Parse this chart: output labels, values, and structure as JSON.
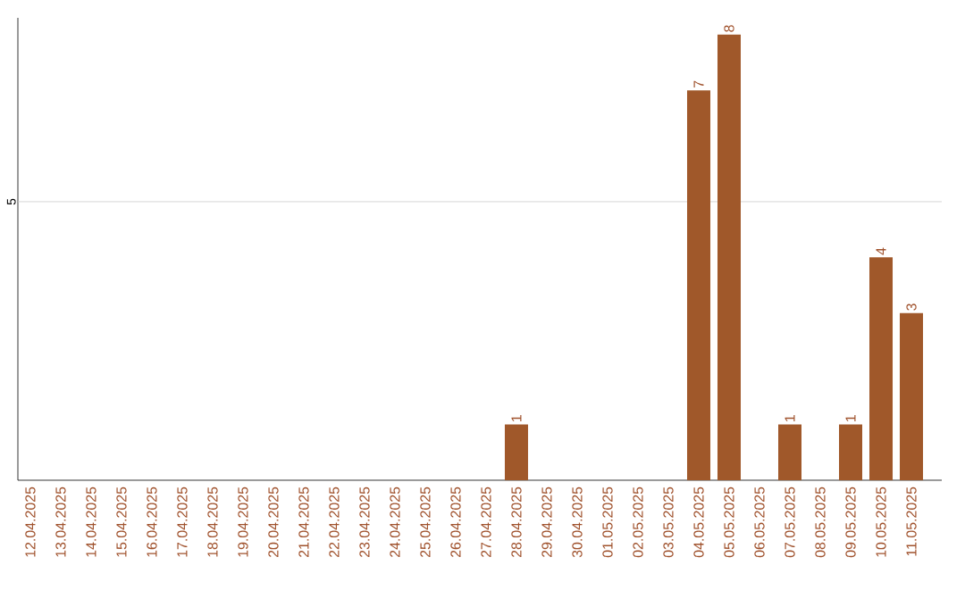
{
  "chart_data": {
    "type": "bar",
    "categories": [
      "12.04.2025",
      "13.04.2025",
      "14.04.2025",
      "15.04.2025",
      "16.04.2025",
      "17.04.2025",
      "18.04.2025",
      "19.04.2025",
      "20.04.2025",
      "21.04.2025",
      "22.04.2025",
      "23.04.2025",
      "24.04.2025",
      "25.04.2025",
      "26.04.2025",
      "27.04.2025",
      "28.04.2025",
      "29.04.2025",
      "30.04.2025",
      "01.05.2025",
      "02.05.2025",
      "03.05.2025",
      "04.05.2025",
      "05.05.2025",
      "06.05.2025",
      "07.05.2025",
      "08.05.2025",
      "09.05.2025",
      "10.05.2025",
      "11.05.2025"
    ],
    "values": [
      null,
      null,
      null,
      null,
      null,
      null,
      null,
      null,
      null,
      null,
      null,
      null,
      null,
      null,
      null,
      null,
      1,
      null,
      null,
      null,
      null,
      null,
      7,
      8,
      null,
      1,
      null,
      1,
      4,
      3
    ],
    "data_labels": true,
    "color": "#a0582a",
    "ylim": [
      0,
      8.3
    ],
    "ref_lines": [
      {
        "axis": "y",
        "value": 5,
        "label": "5",
        "color": "#cccccc"
      }
    ]
  }
}
